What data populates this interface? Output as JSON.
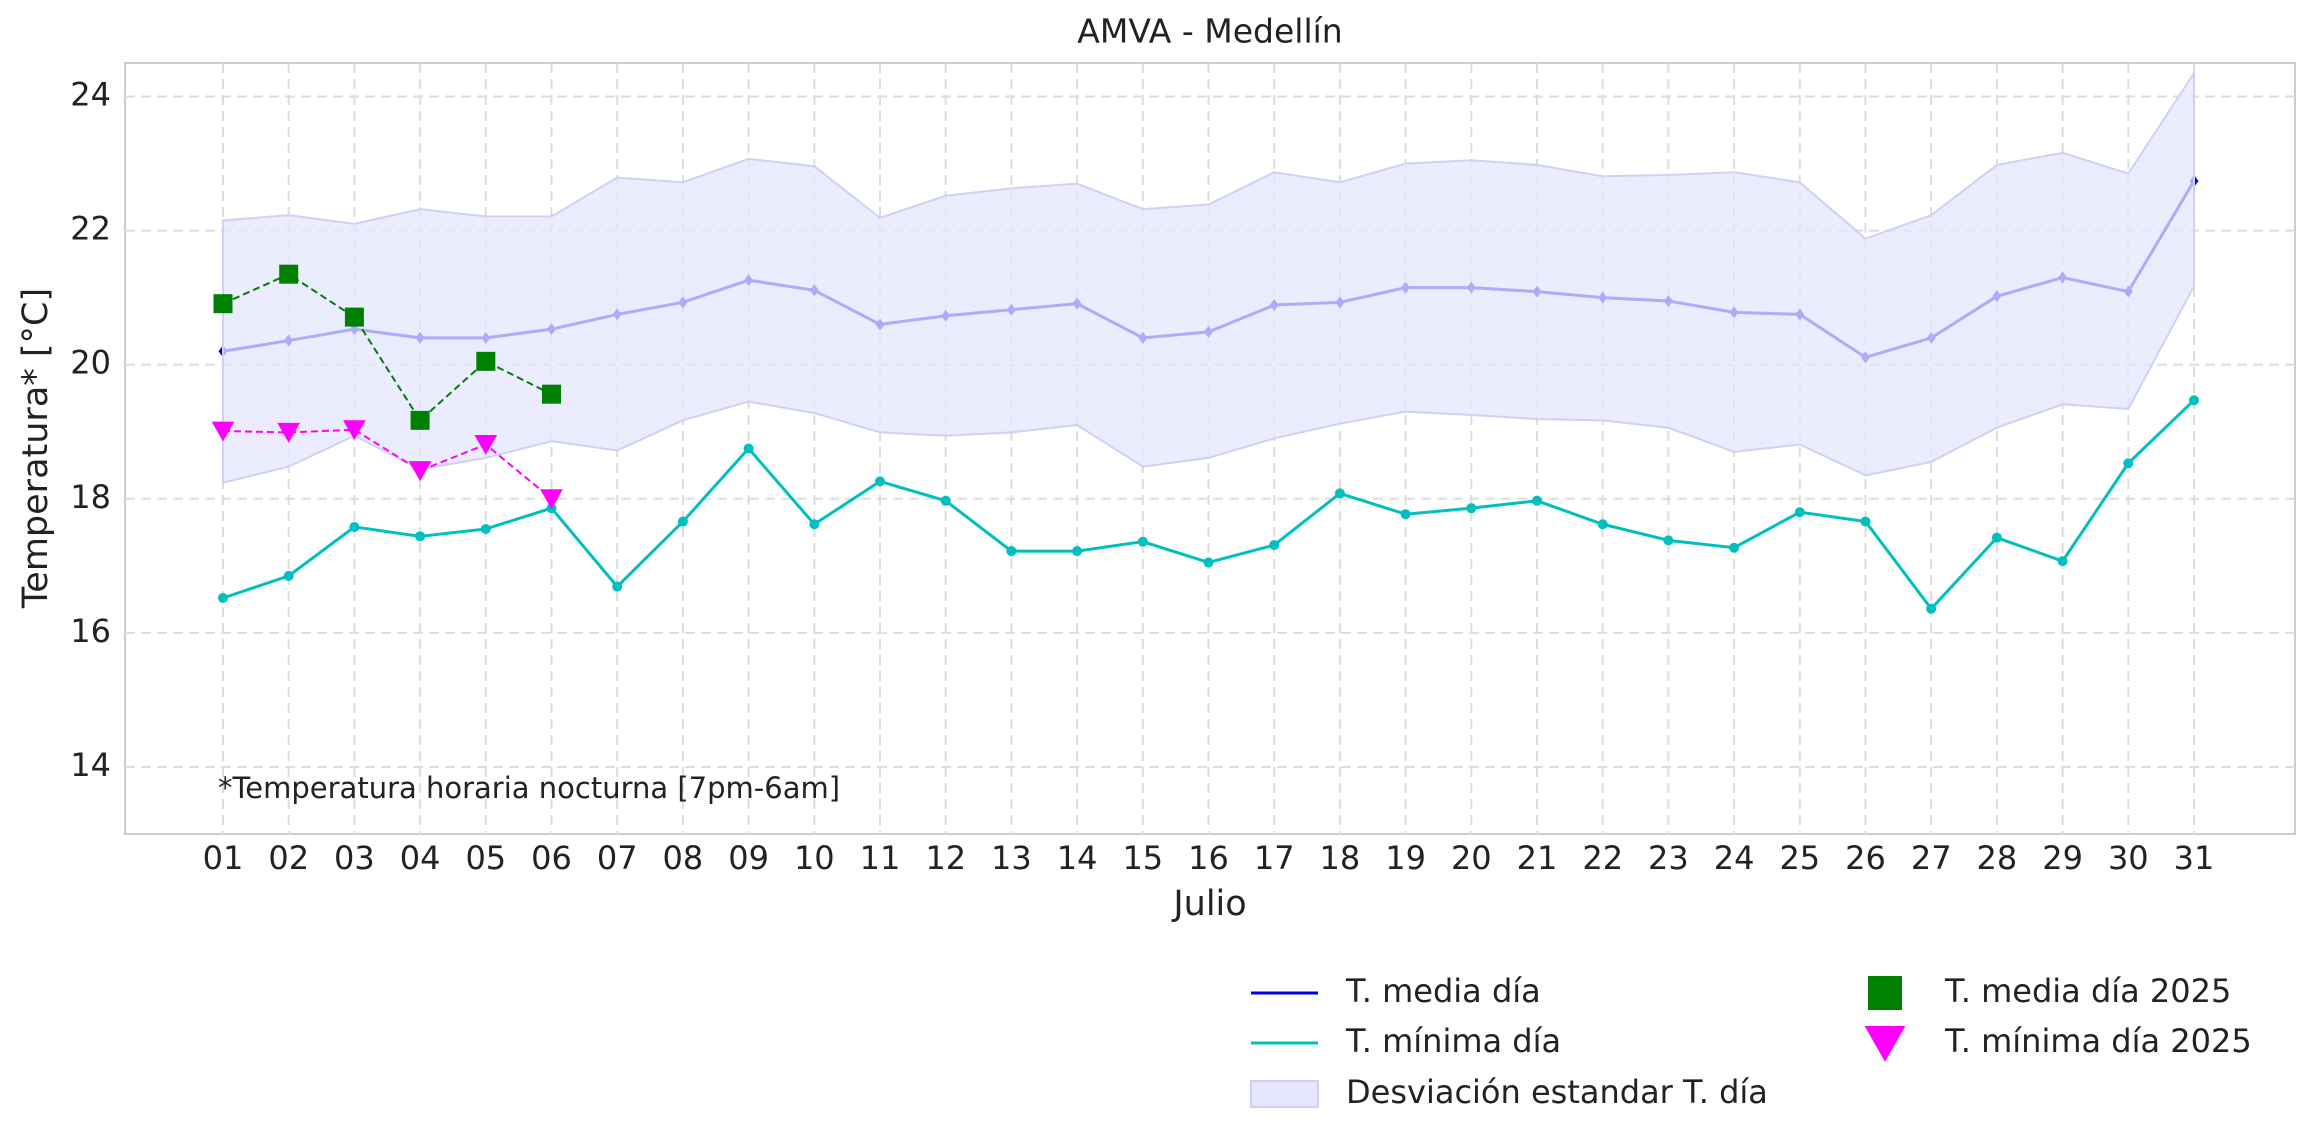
{
  "chart_data": {
    "type": "line",
    "title": "AMVA - Medellín",
    "xlabel": "Julio",
    "ylabel": "Temperatura* [°C]",
    "annotation": "*Temperatura horaria nocturna [7pm-6am]",
    "categories": [
      "01",
      "02",
      "03",
      "04",
      "05",
      "06",
      "07",
      "08",
      "09",
      "10",
      "11",
      "12",
      "13",
      "14",
      "15",
      "16",
      "17",
      "18",
      "19",
      "20",
      "21",
      "22",
      "23",
      "24",
      "25",
      "26",
      "27",
      "28",
      "29",
      "30",
      "31"
    ],
    "ylim": [
      13,
      24.5
    ],
    "yticks": [
      14,
      16,
      18,
      20,
      22,
      24
    ],
    "grid": true,
    "legend": "lower right",
    "series": [
      {
        "name": "T. media día",
        "color": "#0000ee",
        "marker": "diamond",
        "linestyle": "solid",
        "values": [
          20.2,
          20.36,
          20.53,
          20.4,
          20.4,
          20.53,
          20.75,
          20.93,
          21.26,
          21.11,
          20.6,
          20.73,
          20.82,
          20.91,
          20.4,
          20.49,
          20.89,
          20.93,
          21.15,
          21.15,
          21.09,
          21.0,
          20.95,
          20.78,
          20.75,
          20.11,
          20.4,
          21.02,
          21.3,
          21.09,
          22.74
        ]
      },
      {
        "name": "T. mínima día",
        "color": "#00bfbf",
        "marker": "circle",
        "linestyle": "solid",
        "values": [
          16.52,
          16.85,
          17.58,
          17.44,
          17.55,
          17.86,
          16.69,
          17.66,
          18.75,
          17.62,
          18.26,
          17.97,
          17.22,
          17.22,
          17.36,
          17.05,
          17.31,
          18.08,
          17.77,
          17.86,
          17.97,
          17.62,
          17.38,
          17.27,
          17.8,
          17.66,
          16.36,
          17.42,
          17.07,
          18.53,
          19.47
        ]
      },
      {
        "name": "Desviación estandar T. día",
        "color": "#e6e6ff",
        "band": true,
        "upper": [
          22.15,
          22.23,
          22.1,
          22.32,
          22.21,
          22.21,
          22.79,
          22.72,
          23.07,
          22.96,
          22.19,
          22.52,
          22.63,
          22.7,
          22.32,
          22.39,
          22.87,
          22.72,
          23.0,
          23.05,
          22.98,
          22.81,
          22.83,
          22.87,
          22.72,
          21.88,
          22.23,
          22.98,
          23.16,
          22.85,
          24.35
        ],
        "lower": [
          18.24,
          18.48,
          18.94,
          18.44,
          18.61,
          18.86,
          18.72,
          19.17,
          19.45,
          19.28,
          18.99,
          18.94,
          18.99,
          19.1,
          18.48,
          18.61,
          18.9,
          19.12,
          19.3,
          19.25,
          19.19,
          19.17,
          19.06,
          18.7,
          18.81,
          18.35,
          18.55,
          19.06,
          19.41,
          19.34,
          21.17
        ]
      },
      {
        "name": "T. media día 2025",
        "color": "#008000",
        "marker": "square",
        "linestyle": "dashed",
        "values": [
          20.91,
          21.35,
          20.71,
          19.17,
          20.05,
          19.56,
          null,
          null,
          null,
          null,
          null,
          null,
          null,
          null,
          null,
          null,
          null,
          null,
          null,
          null,
          null,
          null,
          null,
          null,
          null,
          null,
          null,
          null,
          null,
          null,
          null
        ]
      },
      {
        "name": "T. mínima día 2025",
        "color": "#ff00ff",
        "marker": "triangle-down",
        "linestyle": "dashed",
        "values": [
          19.01,
          18.99,
          19.03,
          18.42,
          18.81,
          18.0,
          null,
          null,
          null,
          null,
          null,
          null,
          null,
          null,
          null,
          null,
          null,
          null,
          null,
          null,
          null,
          null,
          null,
          null,
          null,
          null,
          null,
          null,
          null,
          null,
          null
        ]
      }
    ]
  }
}
